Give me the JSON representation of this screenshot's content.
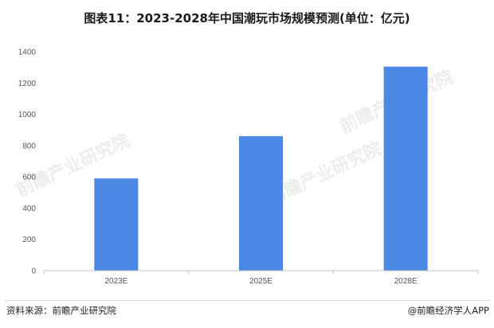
{
  "title": "图表11：2023-2028年中国潮玩市场规模预测(单位：亿元)",
  "chart_data": {
    "type": "bar",
    "categories": [
      "2023E",
      "2025E",
      "2028E"
    ],
    "values": [
      590,
      860,
      1305
    ],
    "ylim": [
      0,
      1400
    ],
    "yticks": [
      0,
      200,
      400,
      600,
      800,
      1000,
      1200,
      1400
    ],
    "bar_color": "#4a88e4",
    "grid": false,
    "legend": "none"
  },
  "footer": {
    "source": "资料来源：前瞻产业研究院",
    "brand": "@前瞻经济学人APP"
  },
  "watermark": {
    "text": "前瞻产业研究院"
  }
}
